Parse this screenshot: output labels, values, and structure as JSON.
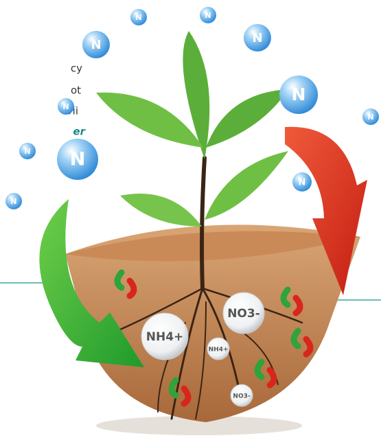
{
  "side_text": [
    "cy",
    "ot",
    "rii",
    "er"
  ],
  "nitrogen_bubbles": [
    "N",
    "N",
    "N",
    "N",
    "N",
    "N",
    "N",
    "N",
    "N",
    "N",
    "N"
  ],
  "ions": [
    "NH4+",
    "NO3-",
    "NH4+",
    "NO3-"
  ]
}
